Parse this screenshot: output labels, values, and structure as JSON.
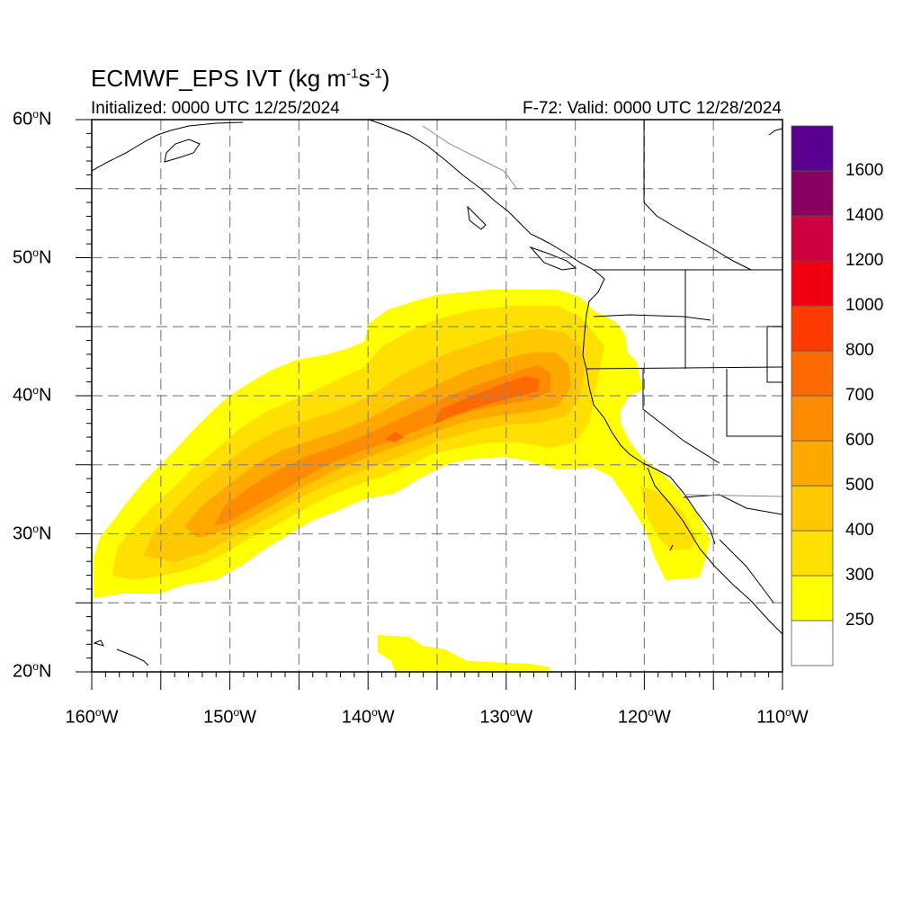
{
  "header": {
    "title_main": "ECMWF_EPS IVT (kg m",
    "title_exp1": "-1",
    "title_mid": "s",
    "title_exp2": "-1",
    "title_end": ")",
    "initialized": "Initialized: 0000 UTC 12/25/2024",
    "valid": "F-72: Valid: 0000 UTC 12/28/2024"
  },
  "map": {
    "projection": "lat-lon",
    "lon_range": [
      -160,
      -110
    ],
    "lat_range": [
      20,
      60
    ],
    "lat_labels": [
      {
        "value": 60,
        "num": "60",
        "deg": "o",
        "hemi": "N"
      },
      {
        "value": 50,
        "num": "50",
        "deg": "o",
        "hemi": "N"
      },
      {
        "value": 40,
        "num": "40",
        "deg": "o",
        "hemi": "N"
      },
      {
        "value": 30,
        "num": "30",
        "deg": "o",
        "hemi": "N"
      },
      {
        "value": 20,
        "num": "20",
        "deg": "o",
        "hemi": "N"
      }
    ],
    "lon_labels": [
      {
        "value": -160,
        "num": "160",
        "deg": "o",
        "hemi": "W"
      },
      {
        "value": -150,
        "num": "150",
        "deg": "o",
        "hemi": "W"
      },
      {
        "value": -140,
        "num": "140",
        "deg": "o",
        "hemi": "W"
      },
      {
        "value": -130,
        "num": "130",
        "deg": "o",
        "hemi": "W"
      },
      {
        "value": -120,
        "num": "120",
        "deg": "o",
        "hemi": "W"
      },
      {
        "value": -110,
        "num": "110",
        "deg": "o",
        "hemi": "W"
      }
    ],
    "gridlines_lon": [
      -155,
      -150,
      -145,
      -140,
      -135,
      -130,
      -125,
      -120,
      -115
    ],
    "gridlines_lat": [
      25,
      30,
      35,
      40,
      45,
      50,
      55
    ],
    "grid_color": "#888888",
    "coast_color": "#000000"
  },
  "colorbar": {
    "levels": [
      250,
      300,
      400,
      500,
      600,
      700,
      800,
      1000,
      1200,
      1400,
      1600
    ],
    "labels": [
      "250",
      "300",
      "400",
      "500",
      "600",
      "700",
      "800",
      "1000",
      "1200",
      "1400",
      "1600"
    ],
    "colors": [
      "#ffffff",
      "#ffff00",
      "#ffe000",
      "#ffc800",
      "#ffa800",
      "#ff8c00",
      "#ff6a00",
      "#ff3c00",
      "#ee0010",
      "#cc0040",
      "#880060",
      "#5a0090"
    ]
  }
}
